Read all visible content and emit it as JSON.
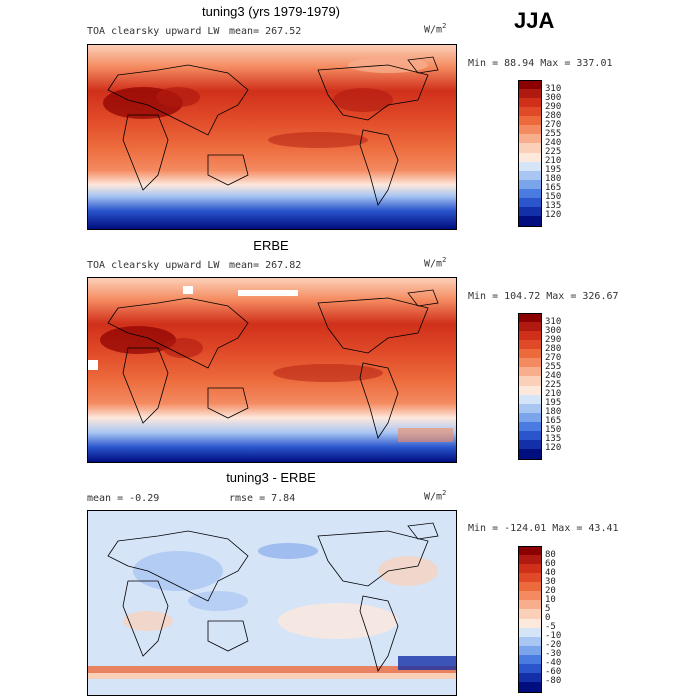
{
  "season": "JJA",
  "panels": [
    {
      "title": "tuning3 (yrs 1979-1979)",
      "field": "TOA clearsky upward LW",
      "mean_label": "mean=",
      "mean_value": "267.52",
      "unit_base": "W/m",
      "unit_exp": "2",
      "minmax": "Min =  88.94 Max = 337.01",
      "colorbar_labels": [
        "310",
        "300",
        "290",
        "280",
        "270",
        "255",
        "240",
        "225",
        "210",
        "195",
        "180",
        "165",
        "150",
        "135",
        "120"
      ]
    },
    {
      "title": "ERBE",
      "field": "TOA clearsky upward LW",
      "mean_label": "mean=",
      "mean_value": "267.82",
      "unit_base": "W/m",
      "unit_exp": "2",
      "minmax": "Min = 104.72 Max = 326.67",
      "colorbar_labels": [
        "310",
        "300",
        "290",
        "280",
        "270",
        "255",
        "240",
        "225",
        "210",
        "195",
        "180",
        "165",
        "150",
        "135",
        "120"
      ]
    },
    {
      "title": "tuning3 - ERBE",
      "mean_text": "mean =  -0.29",
      "rmse_text": "rmse =   7.84",
      "unit_base": "W/m",
      "unit_exp": "2",
      "minmax": "Min = -124.01 Max =  43.41",
      "colorbar_labels": [
        "80",
        "60",
        "40",
        "30",
        "20",
        "10",
        "5",
        "0",
        "-5",
        "-10",
        "-20",
        "-30",
        "-40",
        "-60",
        "-80"
      ]
    }
  ],
  "colors": {
    "abs_scale": [
      "#8b0000",
      "#b01a10",
      "#d0301a",
      "#e04a28",
      "#ec6a3c",
      "#f48a60",
      "#f8ad8c",
      "#fbd0b8",
      "#fde8dc",
      "#d6e4f8",
      "#a9c6f2",
      "#7aa5ea",
      "#4a7be0",
      "#2a55cc",
      "#1430a8",
      "#000e80"
    ],
    "diff_scale": [
      "#8b0000",
      "#b01a10",
      "#d0301a",
      "#e04a28",
      "#ec6a3c",
      "#f48a60",
      "#f8ad8c",
      "#fbd0b8",
      "#fde8dc",
      "#d6e4f8",
      "#a9c6f2",
      "#7aa5ea",
      "#4a7be0",
      "#2a55cc",
      "#1430a8",
      "#000e80"
    ]
  }
}
